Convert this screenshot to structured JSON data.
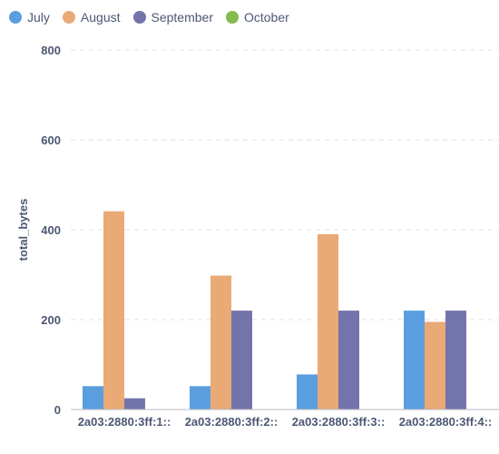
{
  "chart_data": {
    "type": "bar",
    "categories": [
      "2a03:2880:3ff:1::",
      "2a03:2880:3ff:2::",
      "2a03:2880:3ff:3::",
      "2a03:2880:3ff:4::"
    ],
    "series": [
      {
        "name": "July",
        "color": "#5b9edf",
        "values": [
          52,
          52,
          78,
          220
        ]
      },
      {
        "name": "August",
        "color": "#e9aa76",
        "values": [
          441,
          298,
          390,
          195
        ]
      },
      {
        "name": "September",
        "color": "#7474ac",
        "values": [
          25,
          220,
          220,
          220
        ]
      },
      {
        "name": "October",
        "color": "#84bb4c",
        "values": [
          0,
          0,
          0,
          0
        ]
      }
    ],
    "xlabel": "",
    "ylabel": "total_bytes",
    "ylim": [
      0,
      800
    ],
    "yticks": [
      "0",
      "200",
      "400",
      "600",
      "800"
    ],
    "grid": true,
    "legend": "top-left"
  }
}
